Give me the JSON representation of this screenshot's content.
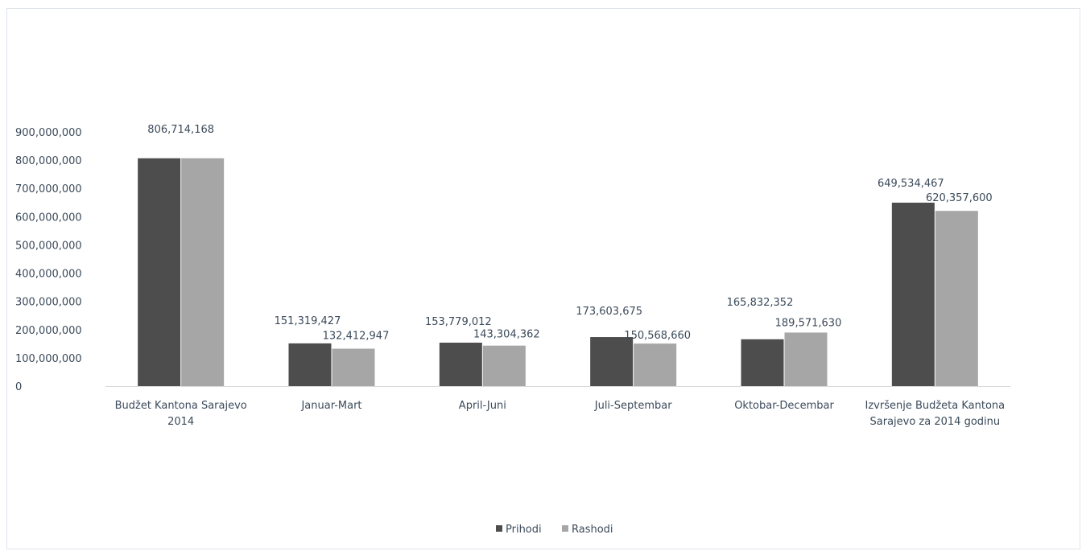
{
  "chart_data": {
    "type": "bar",
    "categories": [
      [
        "Budžet Kantona Sarajevo",
        "2014"
      ],
      [
        "Januar-Mart"
      ],
      [
        "April-Juni"
      ],
      [
        "Juli-Septembar"
      ],
      [
        "Oktobar-Decembar"
      ],
      [
        "Izvršenje Budžeta Kantona",
        "Sarajevo za 2014 godinu"
      ]
    ],
    "series": [
      {
        "name": "Prihodi",
        "color": "#4d4d4d",
        "values": [
          806714168,
          151319427,
          153779012,
          173603675,
          165832352,
          649534467
        ],
        "labels": [
          "806,714,168",
          "151,319,427",
          "153,779,012",
          "173,603,675",
          "165,832,352",
          "649,534,467"
        ]
      },
      {
        "name": "Rashodi",
        "color": "#a6a6a6",
        "values": [
          806714168,
          132412947,
          143304362,
          150568660,
          189571630,
          620357600
        ],
        "labels": [
          "",
          "132,412,947",
          "143,304,362",
          "150,568,660",
          "189,571,630",
          "620,357,600"
        ]
      }
    ],
    "ylim": [
      0,
      900000000
    ],
    "yticks": [
      {
        "value": 0,
        "label": "0"
      },
      {
        "value": 100000000,
        "label": "100,000,000"
      },
      {
        "value": 200000000,
        "label": "200,000,000"
      },
      {
        "value": 300000000,
        "label": "300,000,000"
      },
      {
        "value": 400000000,
        "label": "400,000,000"
      },
      {
        "value": 500000000,
        "label": "500,000,000"
      },
      {
        "value": 600000000,
        "label": "600,000,000"
      },
      {
        "value": 700000000,
        "label": "700,000,000"
      },
      {
        "value": 800000000,
        "label": "800,000,000"
      },
      {
        "value": 900000000,
        "label": "900,000,000"
      }
    ],
    "grid": false,
    "legend_position": "bottom-center",
    "axis_color": "#d9d9d9",
    "text_color": "#3b4a5a"
  }
}
